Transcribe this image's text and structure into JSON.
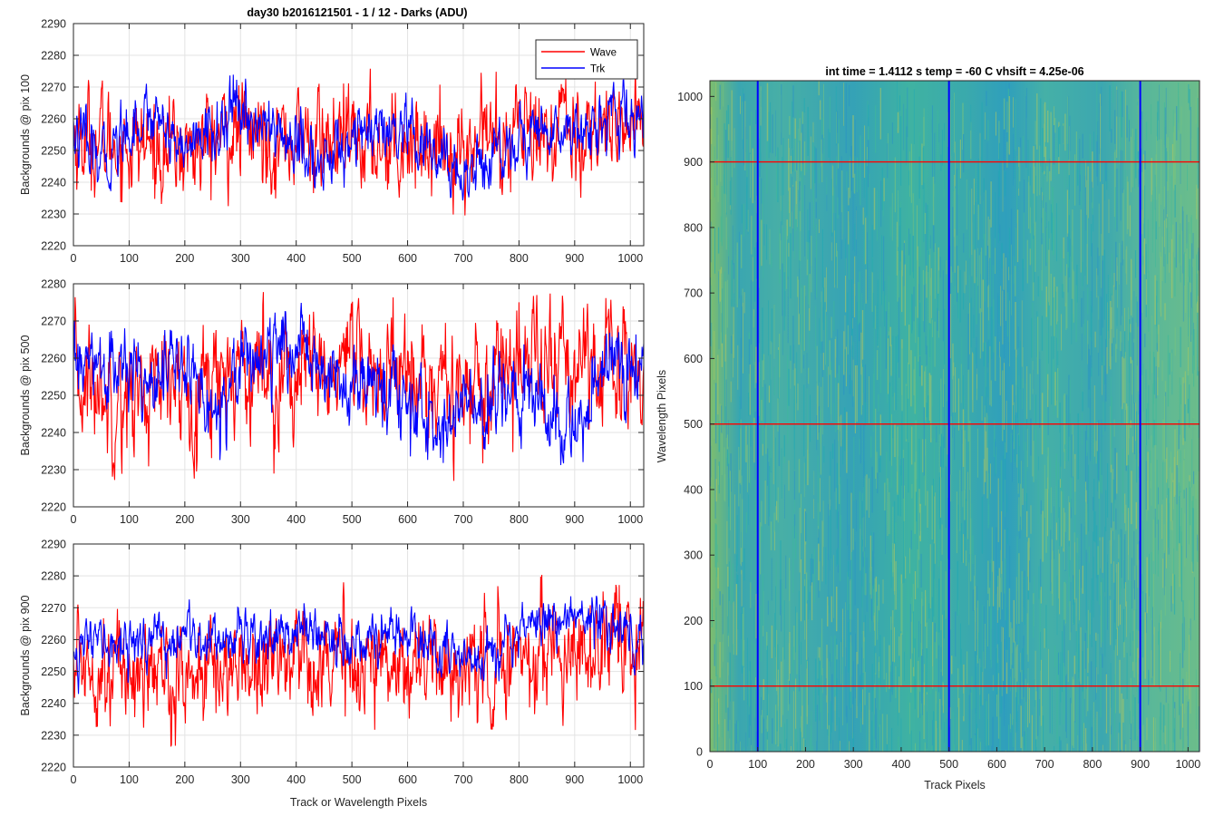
{
  "figure": {
    "suptitle": "day30 b2016121501 - 1 / 12 - Darks (ADU)"
  },
  "colors": {
    "wave": "#ff0000",
    "trk": "#0000ff",
    "grid": "#e3e3e3",
    "axis": "#262626"
  },
  "chart_data": [
    {
      "type": "line",
      "panel": "top",
      "ylabel": "Backgrounds @ pix 100",
      "xlabel": "",
      "xlim": [
        0,
        1024
      ],
      "ylim": [
        2220,
        2290
      ],
      "xticks": [
        0,
        100,
        200,
        300,
        400,
        500,
        600,
        700,
        800,
        900,
        1000
      ],
      "yticks": [
        2220,
        2230,
        2240,
        2250,
        2260,
        2270,
        2280,
        2290
      ],
      "grid": true,
      "legend": {
        "position": "top-right",
        "entries": [
          "Wave",
          "Trk"
        ]
      },
      "series": [
        {
          "name": "Wave",
          "color": "#ff0000",
          "mean": 2254,
          "noise": 8,
          "min": 2229,
          "max": 2280,
          "knots": [
            [
              0,
              2254
            ],
            [
              100,
              2252
            ],
            [
              200,
              2250
            ],
            [
              300,
              2256
            ],
            [
              400,
              2253
            ],
            [
              500,
              2252
            ],
            [
              600,
              2254
            ],
            [
              700,
              2250
            ],
            [
              800,
              2256
            ],
            [
              900,
              2257
            ],
            [
              1024,
              2258
            ]
          ]
        },
        {
          "name": "Trk",
          "color": "#0000ff",
          "mean": 2256,
          "noise": 5,
          "min": 2230,
          "max": 2276,
          "knots": [
            [
              0,
              2256
            ],
            [
              50,
              2245
            ],
            [
              100,
              2258
            ],
            [
              150,
              2262
            ],
            [
              200,
              2250
            ],
            [
              300,
              2262
            ],
            [
              400,
              2252
            ],
            [
              450,
              2244
            ],
            [
              500,
              2256
            ],
            [
              600,
              2253
            ],
            [
              700,
              2242
            ],
            [
              800,
              2254
            ],
            [
              900,
              2258
            ],
            [
              1024,
              2260
            ]
          ]
        }
      ]
    },
    {
      "type": "line",
      "panel": "middle",
      "ylabel": "Backgrounds @ pix 500",
      "xlabel": "",
      "xlim": [
        0,
        1024
      ],
      "ylim": [
        2220,
        2280
      ],
      "xticks": [
        0,
        100,
        200,
        300,
        400,
        500,
        600,
        700,
        800,
        900,
        1000
      ],
      "yticks": [
        2220,
        2230,
        2240,
        2250,
        2260,
        2270,
        2280
      ],
      "grid": true,
      "series": [
        {
          "name": "Wave",
          "color": "#ff0000",
          "mean": 2254,
          "noise": 8,
          "min": 2226,
          "max": 2278,
          "knots": [
            [
              0,
              2254
            ],
            [
              100,
              2250
            ],
            [
              200,
              2252
            ],
            [
              300,
              2258
            ],
            [
              400,
              2255
            ],
            [
              500,
              2256
            ],
            [
              600,
              2256
            ],
            [
              700,
              2252
            ],
            [
              800,
              2258
            ],
            [
              900,
              2258
            ],
            [
              1024,
              2256
            ]
          ]
        },
        {
          "name": "Trk",
          "color": "#0000ff",
          "mean": 2255,
          "noise": 5,
          "min": 2229,
          "max": 2276,
          "knots": [
            [
              0,
              2258
            ],
            [
              100,
              2256
            ],
            [
              200,
              2258
            ],
            [
              250,
              2245
            ],
            [
              300,
              2260
            ],
            [
              400,
              2262
            ],
            [
              500,
              2254
            ],
            [
              600,
              2250
            ],
            [
              650,
              2238
            ],
            [
              700,
              2248
            ],
            [
              800,
              2252
            ],
            [
              900,
              2238
            ],
            [
              950,
              2258
            ],
            [
              1024,
              2256
            ]
          ]
        }
      ]
    },
    {
      "type": "line",
      "panel": "bottom",
      "ylabel": "Backgrounds @ pix 900",
      "xlabel": "Track or Wavelength Pixels",
      "xlim": [
        0,
        1024
      ],
      "ylim": [
        2220,
        2290
      ],
      "xticks": [
        0,
        100,
        200,
        300,
        400,
        500,
        600,
        700,
        800,
        900,
        1000
      ],
      "yticks": [
        2220,
        2230,
        2240,
        2250,
        2260,
        2270,
        2280,
        2290
      ],
      "grid": true,
      "series": [
        {
          "name": "Wave",
          "color": "#ff0000",
          "mean": 2253,
          "noise": 8,
          "min": 2226,
          "max": 2282,
          "knots": [
            [
              0,
              2254
            ],
            [
              100,
              2250
            ],
            [
              200,
              2248
            ],
            [
              300,
              2252
            ],
            [
              400,
              2256
            ],
            [
              500,
              2252
            ],
            [
              600,
              2254
            ],
            [
              700,
              2250
            ],
            [
              800,
              2255
            ],
            [
              900,
              2258
            ],
            [
              1024,
              2256
            ]
          ]
        },
        {
          "name": "Trk",
          "color": "#0000ff",
          "mean": 2258,
          "noise": 4,
          "min": 2236,
          "max": 2277,
          "knots": [
            [
              0,
              2258
            ],
            [
              100,
              2259
            ],
            [
              200,
              2260
            ],
            [
              300,
              2262
            ],
            [
              400,
              2262
            ],
            [
              500,
              2260
            ],
            [
              600,
              2262
            ],
            [
              700,
              2252
            ],
            [
              800,
              2264
            ],
            [
              900,
              2268
            ],
            [
              1024,
              2262
            ]
          ]
        }
      ]
    },
    {
      "type": "heatmap",
      "panel": "image",
      "title": "int time = 1.4112 s    temp = -60 C    vhsift = 4.25e-06",
      "xlabel": "Track Pixels",
      "ylabel": "Wavelength Pixels",
      "xlim": [
        0,
        1024
      ],
      "ylim": [
        0,
        1024
      ],
      "xticks": [
        0,
        100,
        200,
        300,
        400,
        500,
        600,
        700,
        800,
        900,
        1000
      ],
      "yticks": [
        0,
        100,
        200,
        300,
        400,
        500,
        600,
        700,
        800,
        900,
        1000
      ],
      "colormap": [
        "#2a93c6",
        "#1fa9b5",
        "#3fb99a",
        "#7dc67a",
        "#b5ca5c"
      ],
      "bands": [
        [
          0,
          "#7dbe6e"
        ],
        [
          60,
          "#3aa6b0"
        ],
        [
          150,
          "#48afa6"
        ],
        [
          300,
          "#35a2b6"
        ],
        [
          420,
          "#3fb2a2"
        ],
        [
          540,
          "#3aa9ad"
        ],
        [
          620,
          "#2f9fbc"
        ],
        [
          700,
          "#45b0a7"
        ],
        [
          820,
          "#3ca7b0"
        ],
        [
          900,
          "#56b69c"
        ],
        [
          1024,
          "#6cbd8a"
        ]
      ],
      "hlines": [
        {
          "y": 100,
          "color": "#ff0000"
        },
        {
          "y": 500,
          "color": "#ff0000"
        },
        {
          "y": 900,
          "color": "#ff0000"
        }
      ],
      "vlines": [
        {
          "x": 100,
          "color": "#0000ff"
        },
        {
          "x": 500,
          "color": "#0000ff"
        },
        {
          "x": 900,
          "color": "#0000ff"
        }
      ]
    }
  ]
}
